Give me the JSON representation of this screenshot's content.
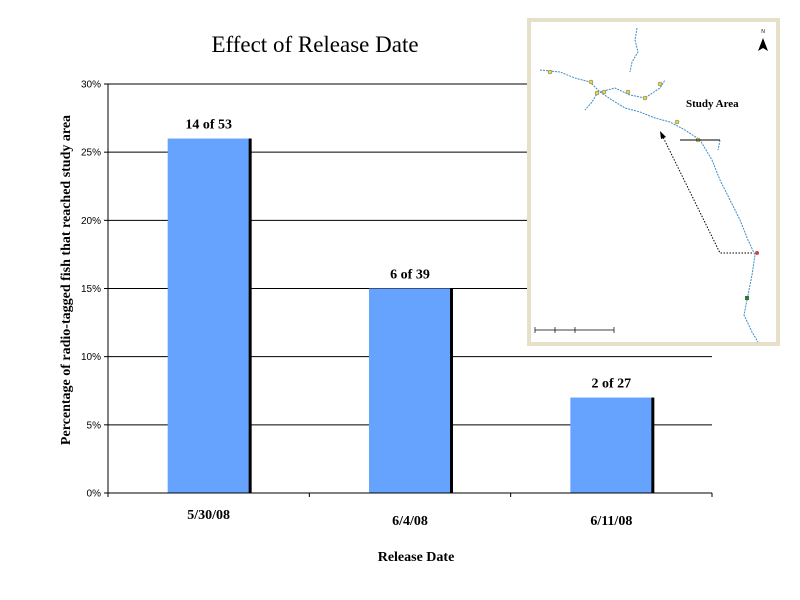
{
  "chart_data": {
    "type": "bar",
    "title": "Effect of Release Date",
    "xlabel": "Release Date",
    "ylabel": "Percentage of radio-tagged fish that reached study area",
    "categories": [
      "5/30/08",
      "6/4/08",
      "6/11/08"
    ],
    "values": [
      26,
      15,
      7
    ],
    "unit": "%",
    "data_labels": [
      "14 of 53",
      "6 of 39",
      "2 of 27"
    ],
    "ylim": [
      0,
      30
    ],
    "yticks": [
      0,
      5,
      10,
      15,
      20,
      25,
      30
    ],
    "ytick_labels": [
      "0%",
      "5%",
      "10%",
      "15%",
      "20%",
      "25%",
      "30%"
    ],
    "grid": true,
    "legend": "none",
    "bar_color": "#66a3ff"
  },
  "inset_map": {
    "label": "Study Area",
    "north_label": "N",
    "border_color": "#e6e0c8",
    "river_color": "#3c8cc8"
  }
}
